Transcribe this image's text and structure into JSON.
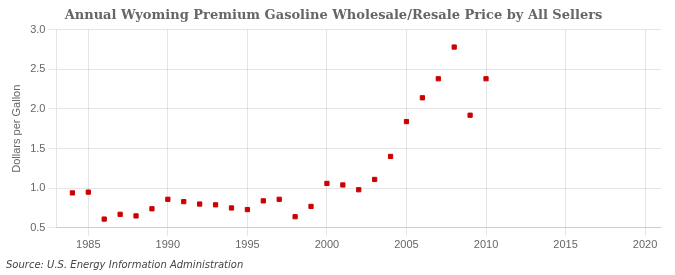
{
  "chart_data": {
    "type": "scatter",
    "title": "Annual Wyoming Premium Gasoline Wholesale/Resale Price by All Sellers",
    "y_label": "Dollars per Gallon",
    "annotation": "Source: U.S. Energy Information Administration",
    "x": [
      1984,
      1985,
      1986,
      1987,
      1988,
      1989,
      1990,
      1991,
      1992,
      1993,
      1994,
      1995,
      1996,
      1997,
      1998,
      1999,
      2000,
      2001,
      2002,
      2003,
      2004,
      2005,
      2006,
      2007,
      2008,
      2009,
      2010
    ],
    "values": [
      0.94,
      0.95,
      0.61,
      0.67,
      0.65,
      0.74,
      0.86,
      0.83,
      0.8,
      0.79,
      0.75,
      0.73,
      0.84,
      0.86,
      0.64,
      0.77,
      1.06,
      1.04,
      0.98,
      1.11,
      1.4,
      1.84,
      2.14,
      2.38,
      2.78,
      1.92,
      2.38
    ],
    "color": "#cc0000",
    "marker": "square",
    "xlim": [
      1983,
      2021
    ],
    "xticks": [
      1985,
      1990,
      1995,
      2000,
      2005,
      2010,
      2015,
      2020
    ],
    "ylim": [
      0.5,
      3.0
    ],
    "yticks": [
      0.5,
      {
        "value": 1.0,
        "label": "1.0"
      },
      1.5,
      {
        "value": 2.0,
        "label": "2.0"
      },
      2.5,
      {
        "value": 3.0,
        "label": "3.0"
      }
    ],
    "grid": true
  }
}
